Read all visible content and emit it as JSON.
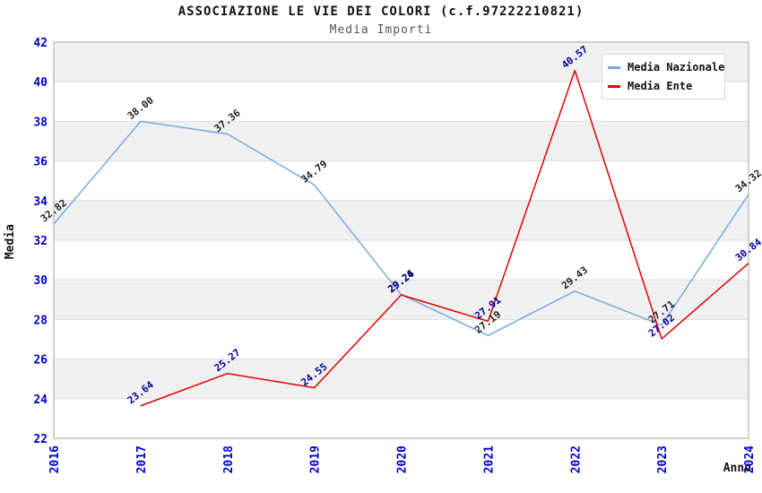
{
  "header": {
    "title": "ASSOCIAZIONE LE VIE DEI COLORI (c.f.97222210821)",
    "subtitle": "Media Importi"
  },
  "chart_data": {
    "type": "line",
    "title": "ASSOCIAZIONE LE VIE DEI COLORI (c.f.97222210821)",
    "subtitle": "Media Importi",
    "xlabel": "Anno",
    "ylabel": "Media",
    "x": [
      "2016",
      "2017",
      "2018",
      "2019",
      "2020",
      "2021",
      "2022",
      "2023",
      "2024"
    ],
    "ylim": [
      22,
      42
    ],
    "ytick_step": 2,
    "grid": "horizontal-bands",
    "legend_position": "top-right",
    "series": [
      {
        "name": "Media Nazionale",
        "color": "#76aadd",
        "label_color": "#222222",
        "values": [
          32.82,
          38.0,
          37.36,
          34.79,
          29.26,
          27.19,
          29.43,
          27.71,
          34.32
        ]
      },
      {
        "name": "Media Ente",
        "color": "#e00000",
        "label_color": "#000099",
        "values": [
          null,
          23.64,
          25.27,
          24.55,
          29.24,
          27.91,
          40.57,
          27.02,
          30.84
        ]
      }
    ],
    "colors": {
      "axis_tick": "#0000cc",
      "band": "#f0f0f0",
      "gridline": "#dedede",
      "plot_border": "#a6a6a6"
    }
  }
}
